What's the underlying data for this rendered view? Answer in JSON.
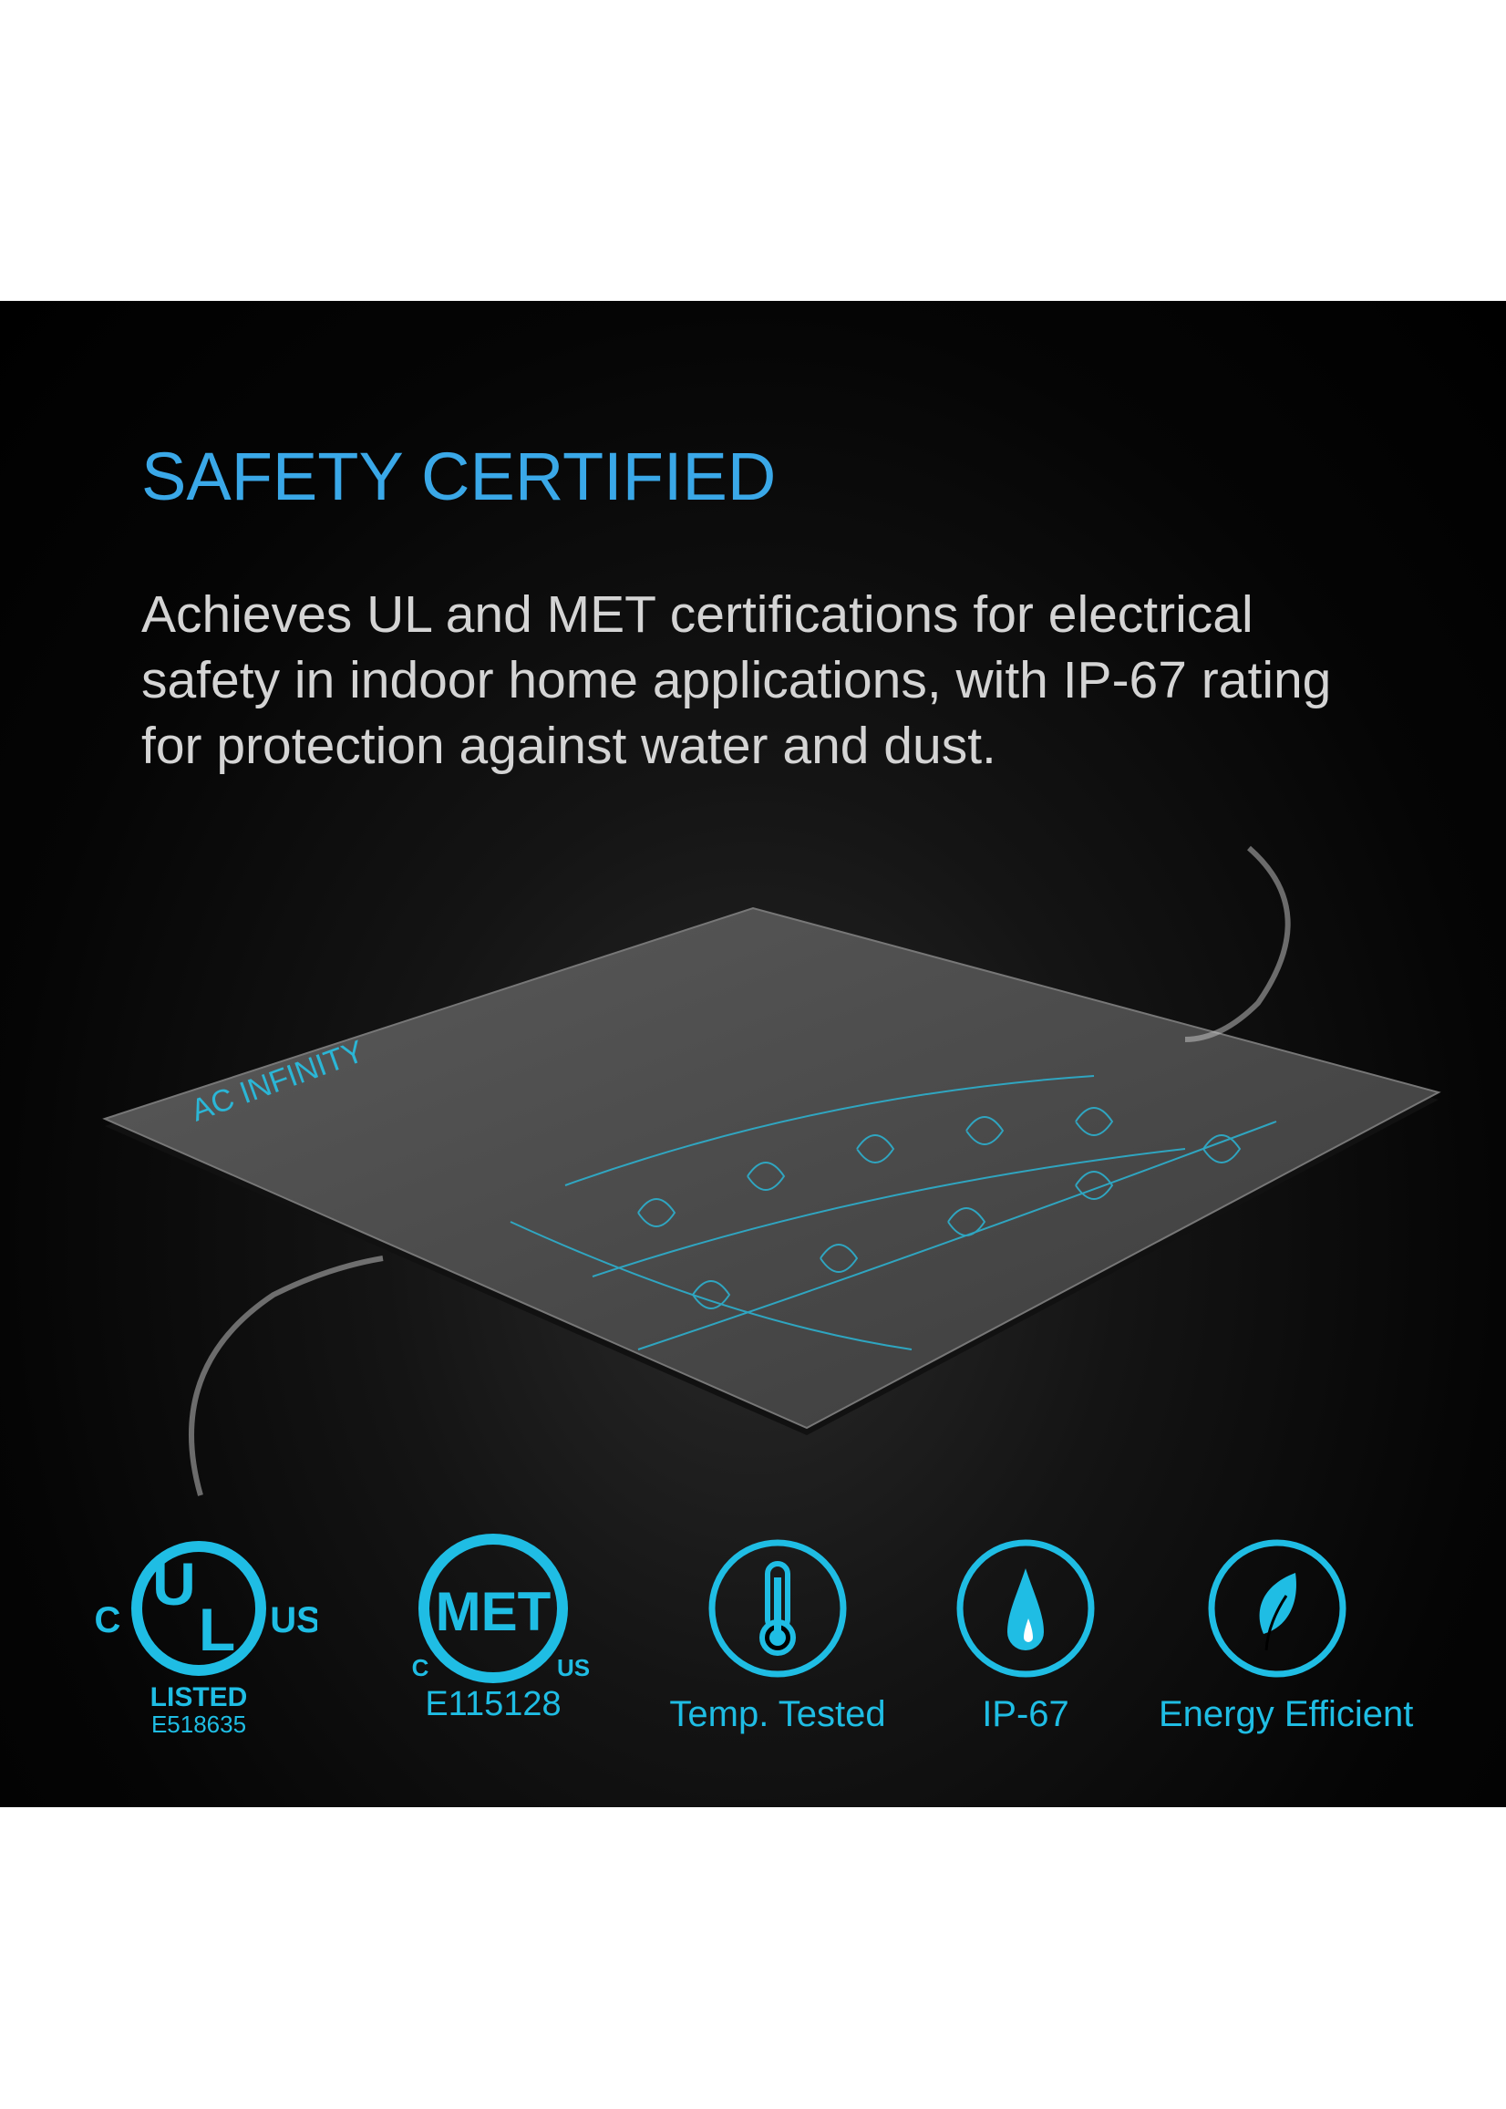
{
  "heading": "SAFETY CERTIFIED",
  "description": "Achieves UL and MET certifications for electrical safety in indoor home applications, with IP-67 rating for protection against water and dust.",
  "product": {
    "brand": "AC INFINITY"
  },
  "colors": {
    "accent": "#1fbde4",
    "title": "#3aa8e8",
    "background": "#000000",
    "text": "#d4d4d4"
  },
  "certifications": [
    {
      "logo": "UL",
      "prefix": "C",
      "suffix": "US",
      "listed": "LISTED",
      "number": "E518635"
    },
    {
      "logo": "MET",
      "prefix": "C",
      "suffix": "US",
      "number": "E115128"
    }
  ],
  "features": [
    {
      "icon": "thermometer-icon",
      "label": "Temp. Tested"
    },
    {
      "icon": "water-drop-icon",
      "label": "IP-67"
    },
    {
      "icon": "leaf-icon",
      "label": "Energy Efficient"
    }
  ]
}
